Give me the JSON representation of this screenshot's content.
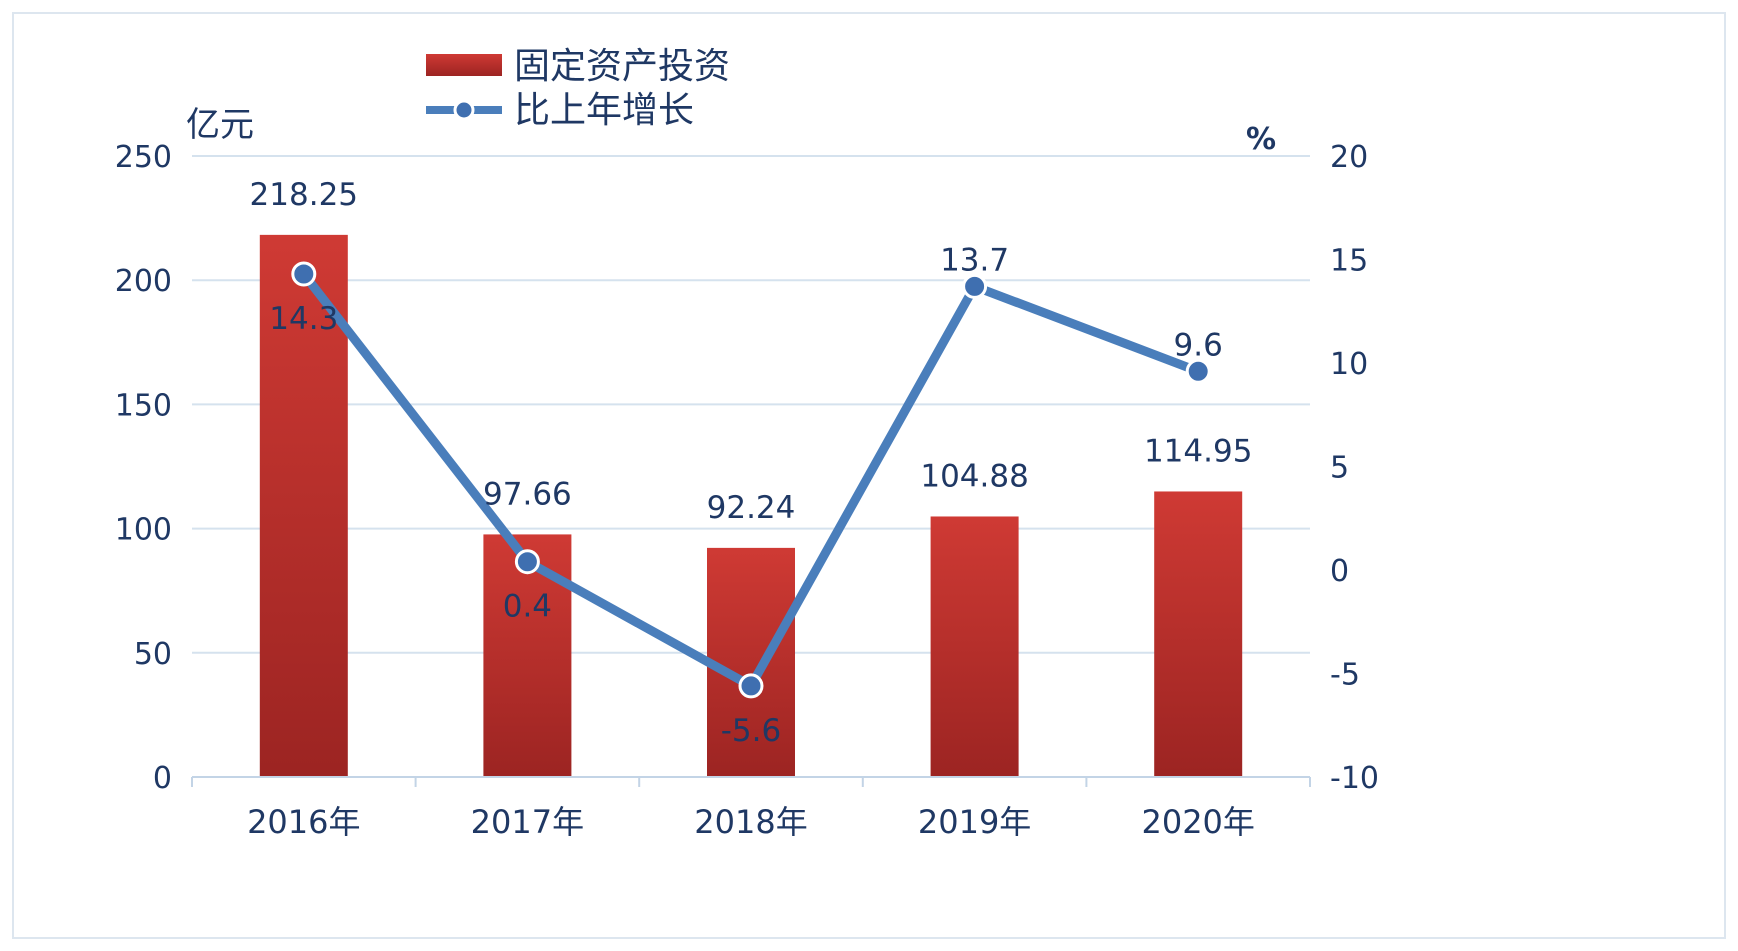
{
  "chart_data": {
    "type": "bar",
    "categories": [
      "2016年",
      "2017年",
      "2018年",
      "2019年",
      "2020年"
    ],
    "series": [
      {
        "name": "固定资产投资",
        "type": "bar",
        "axis": "left",
        "values": [
          218.25,
          97.66,
          92.24,
          104.88,
          114.95
        ],
        "labels": [
          "218.25",
          "97.66",
          "92.24",
          "104.88",
          "114.95"
        ],
        "color": "#c0312b"
      },
      {
        "name": "比上年增长",
        "type": "line",
        "axis": "right",
        "values": [
          14.3,
          0.4,
          -5.6,
          13.7,
          9.6
        ],
        "labels": [
          "14.3",
          "0.4",
          "-5.6",
          "13.7",
          "9.6"
        ],
        "color": "#4a7ebb"
      }
    ],
    "ylabel": "亿元",
    "y2label": "%",
    "ylim": [
      0,
      250
    ],
    "y2lim": [
      -10,
      20
    ],
    "yticks": [
      "0",
      "50",
      "100",
      "150",
      "200",
      "250"
    ],
    "y2ticks": [
      "-10",
      "-5",
      "0",
      "5",
      "10",
      "15",
      "20"
    ],
    "grid": true,
    "legend_position": "top-center"
  }
}
